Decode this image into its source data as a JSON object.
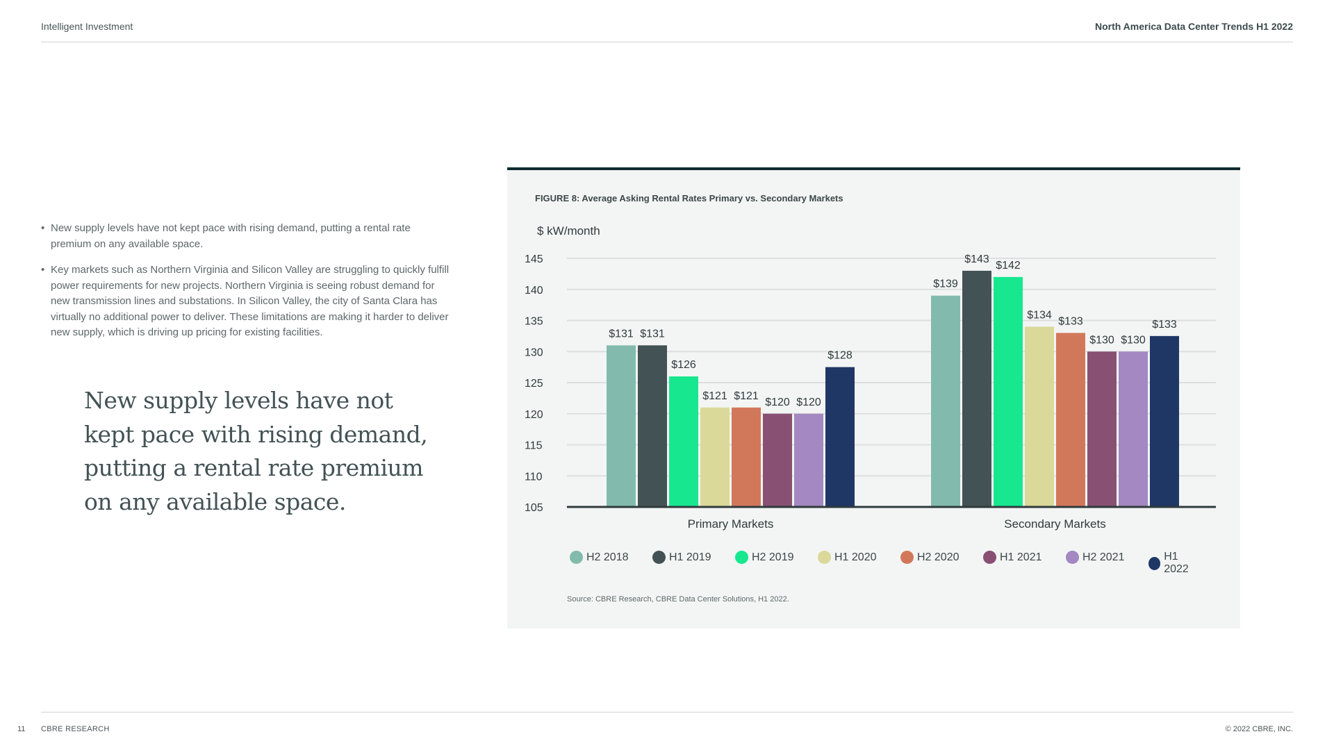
{
  "header": {
    "left": "Intelligent Investment",
    "right": "North America Data Center Trends H1 2022"
  },
  "footer": {
    "page": "11",
    "left": "CBRE RESEARCH",
    "right": "© 2022 CBRE, INC."
  },
  "bullets": [
    "New supply levels have not kept pace with rising demand, putting a rental rate premium on any available space.",
    "Key markets such as Northern Virginia and Silicon Valley are struggling to quickly fulfill power requirements for new projects. Northern Virginia is seeing robust demand for new transmission lines and substations. In Silicon Valley, the city of Santa Clara has virtually no additional power to deliver. These limitations are making it harder to deliver new supply, which is driving up pricing for existing facilities."
  ],
  "pullquote": "New supply levels have not kept pace with rising demand, putting a rental rate premium on any available space.",
  "figure": {
    "title": "FIGURE 8: Average Asking Rental Rates Primary vs. Secondary Markets",
    "source": "Source: CBRE Research, CBRE Data Center Solutions, H1 2022."
  },
  "chart_data": {
    "type": "bar",
    "ylabel": "$ kW/month",
    "ylim": [
      105,
      145
    ],
    "yticks": [
      105,
      110,
      115,
      120,
      125,
      130,
      135,
      140,
      145
    ],
    "grid": true,
    "legend_position": "bottom",
    "categories": [
      "Primary Markets",
      "Secondary Markets"
    ],
    "series": [
      {
        "name": "H2 2018",
        "color": "#82bbad",
        "values": [
          131,
          139
        ],
        "labels": [
          "$131",
          "$139"
        ]
      },
      {
        "name": "H1 2019",
        "color": "#435254",
        "values": [
          131,
          143
        ],
        "labels": [
          "$131",
          "$143"
        ]
      },
      {
        "name": "H2 2019",
        "color": "#17e88f",
        "values": [
          126,
          142
        ],
        "labels": [
          "$126",
          "$142"
        ]
      },
      {
        "name": "H1 2020",
        "color": "#dbd99a",
        "values": [
          121,
          134
        ],
        "labels": [
          "$121",
          "$134"
        ]
      },
      {
        "name": "H2 2020",
        "color": "#d2785a",
        "values": [
          121,
          133
        ],
        "labels": [
          "$121",
          "$133"
        ]
      },
      {
        "name": "H1 2021",
        "color": "#885073",
        "values": [
          120,
          130
        ],
        "labels": [
          "$120",
          "$130"
        ]
      },
      {
        "name": "H2 2021",
        "color": "#a388c1",
        "values": [
          120,
          130
        ],
        "labels": [
          "$120",
          "$130"
        ]
      },
      {
        "name": "H1 2022",
        "color": "#1f3765",
        "values": [
          127.5,
          132.5
        ],
        "labels": [
          "$128",
          "$133"
        ]
      }
    ]
  }
}
